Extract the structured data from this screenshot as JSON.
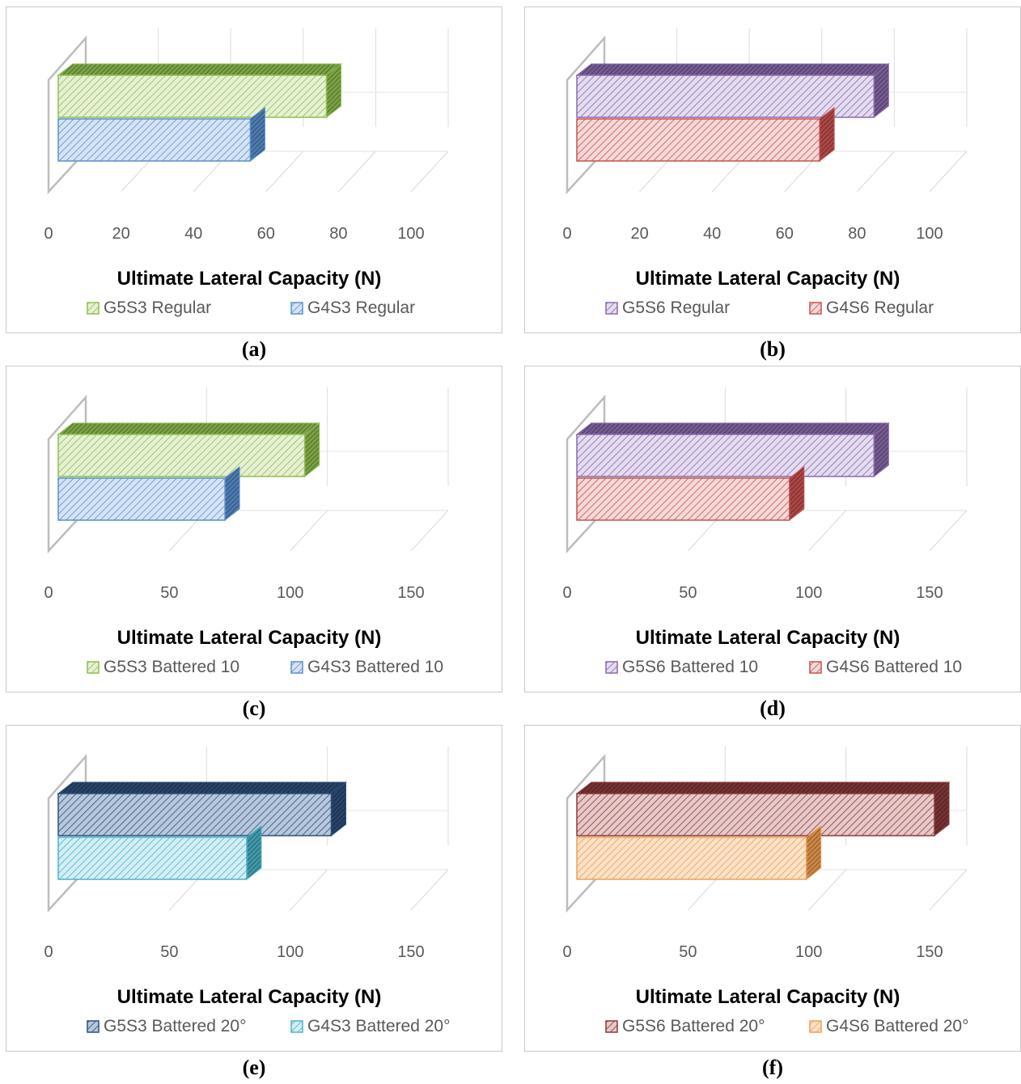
{
  "axis_title": "Ultimate Lateral Capacity (N)",
  "chart_data": [
    {
      "type": "bar",
      "caption": "(a)",
      "xlabel": "Ultimate Lateral Capacity (N)",
      "ylabel": "",
      "xlim": [
        0,
        100
      ],
      "ticks": [
        0,
        20,
        40,
        60,
        80,
        100
      ],
      "legend_position": "bottom",
      "series": [
        {
          "name": "G5S3 Regular",
          "value": 74,
          "color": "#8fbf4f",
          "fill": "#e5f0d4"
        },
        {
          "name": "G4S3 Regular",
          "value": 53,
          "color": "#5b8fcf",
          "fill": "#d6e3f4"
        }
      ]
    },
    {
      "type": "bar",
      "caption": "(b)",
      "xlabel": "Ultimate Lateral Capacity (N)",
      "ylabel": "",
      "xlim": [
        0,
        100
      ],
      "ticks": [
        0,
        20,
        40,
        60,
        80,
        100
      ],
      "legend_position": "bottom",
      "series": [
        {
          "name": "G5S6 Regular",
          "value": 82,
          "color": "#8a6aac",
          "fill": "#e4dcef"
        },
        {
          "name": "G4S6 Regular",
          "value": 67,
          "color": "#c95250",
          "fill": "#f3d9d8"
        }
      ]
    },
    {
      "type": "bar",
      "caption": "(c)",
      "xlabel": "Ultimate Lateral Capacity (N)",
      "ylabel": "",
      "xlim": [
        0,
        150
      ],
      "ticks": [
        0,
        50,
        100,
        150
      ],
      "legend_position": "bottom",
      "series": [
        {
          "name": "G5S3 Battered 10",
          "value": 102,
          "color": "#8fbf4f",
          "fill": "#e5f0d4"
        },
        {
          "name": "G4S3 Battered 10",
          "value": 69,
          "color": "#5b8fcf",
          "fill": "#d6e3f4"
        }
      ]
    },
    {
      "type": "bar",
      "caption": "(d)",
      "xlabel": "Ultimate Lateral Capacity (N)",
      "ylabel": "",
      "xlim": [
        0,
        150
      ],
      "ticks": [
        0,
        50,
        100,
        150
      ],
      "legend_position": "bottom",
      "series": [
        {
          "name": "G5S6 Battered 10",
          "value": 123,
          "color": "#8a6aac",
          "fill": "#e4dcef"
        },
        {
          "name": "G4S6 Battered 10",
          "value": 88,
          "color": "#c95250",
          "fill": "#f3d9d8"
        }
      ]
    },
    {
      "type": "bar",
      "caption": "(e)",
      "xlabel": "Ultimate Lateral Capacity (N)",
      "ylabel": "",
      "xlim": [
        0,
        150
      ],
      "ticks": [
        0,
        50,
        100,
        150
      ],
      "legend_position": "bottom",
      "series": [
        {
          "name": "G5S3 Battered 20°",
          "value": 113,
          "color": "#2f4f7a",
          "fill": "#b7c7dc"
        },
        {
          "name": "G4S3 Battered 20°",
          "value": 78,
          "color": "#4bb3c8",
          "fill": "#d3eef4"
        }
      ]
    },
    {
      "type": "bar",
      "caption": "(f)",
      "xlabel": "Ultimate Lateral Capacity (N)",
      "ylabel": "",
      "xlim": [
        0,
        150
      ],
      "ticks": [
        0,
        50,
        100,
        150
      ],
      "legend_position": "bottom",
      "series": [
        {
          "name": "G5S6 Battered 20°",
          "value": 148,
          "color": "#8a3b3b",
          "fill": "#e6c9c9"
        },
        {
          "name": "G4S6 Battered 20°",
          "value": 95,
          "color": "#f0a050",
          "fill": "#fbe2c8"
        }
      ]
    }
  ]
}
